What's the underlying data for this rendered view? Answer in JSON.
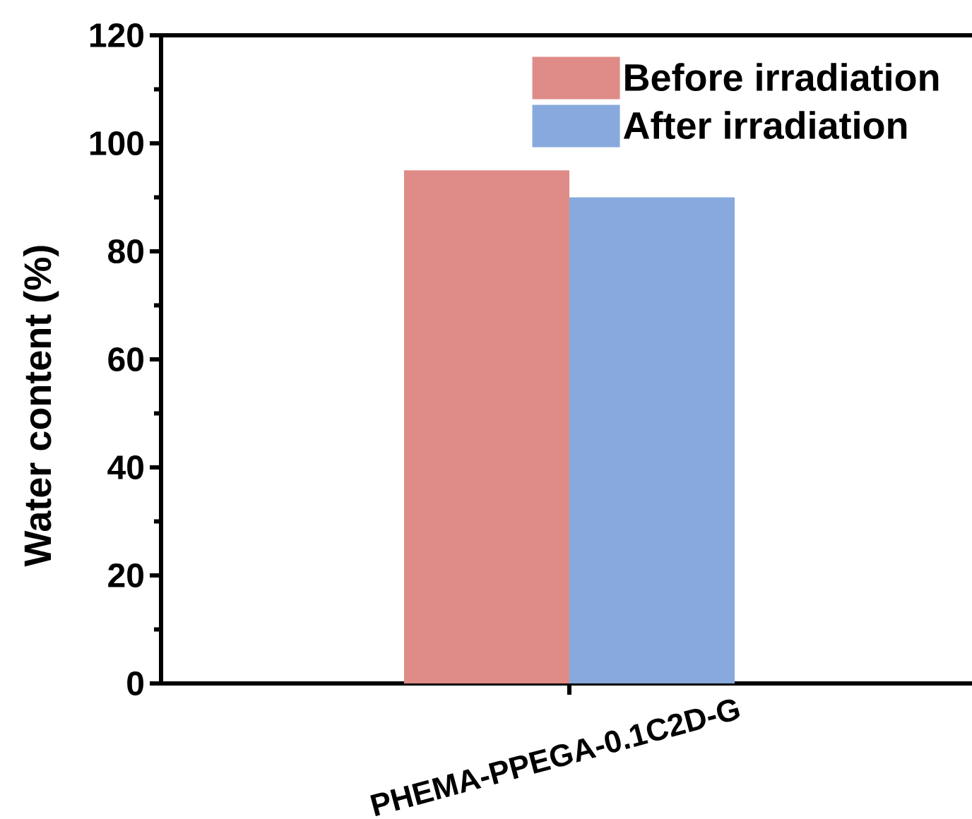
{
  "chart_data": {
    "type": "bar",
    "categories": [
      "PHEMA-PPEGA-0.1C2D-G"
    ],
    "series": [
      {
        "name": "Before irradiation",
        "color": "#df8b87",
        "values": [
          95
        ]
      },
      {
        "name": "After irradiation",
        "color": "#87a9dd",
        "values": [
          90
        ]
      }
    ],
    "ylabel": "Water content (%)",
    "ylim": [
      0,
      120
    ],
    "yticks": [
      0,
      20,
      40,
      60,
      80,
      100,
      120
    ],
    "legend": "top right"
  }
}
